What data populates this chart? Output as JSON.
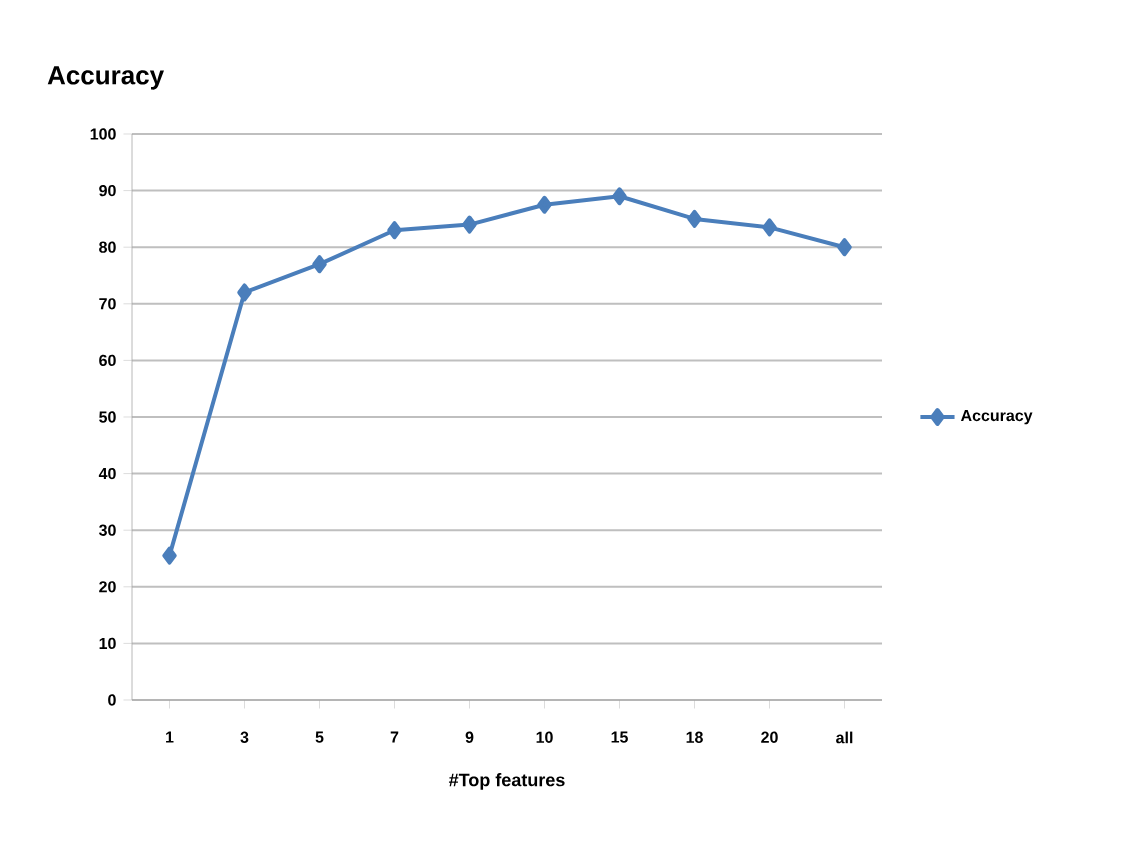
{
  "chart_data": {
    "type": "line",
    "title": "Accuracy",
    "xlabel": "#Top features",
    "categories": [
      "1",
      "3",
      "5",
      "7",
      "9",
      "10",
      "15",
      "18",
      "20",
      "all"
    ],
    "series": [
      {
        "name": "Accuracy",
        "color": "#4a7ebb",
        "values": [
          25.5,
          72,
          77,
          83,
          84,
          87.5,
          89,
          85,
          83.5,
          80
        ]
      }
    ],
    "ylim": [
      0,
      100
    ],
    "yticks": [
      0,
      10,
      20,
      30,
      40,
      50,
      60,
      70,
      80,
      90,
      100
    ],
    "grid": "y",
    "legend": "right",
    "marker": "diamond",
    "line_style": "solid"
  }
}
